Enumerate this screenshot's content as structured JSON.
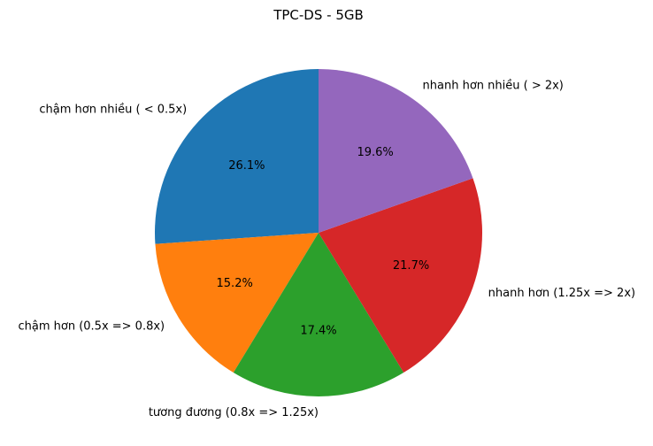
{
  "chart_data": {
    "type": "pie",
    "title": "TPC-DS - 5GB",
    "start_angle_deg": 90,
    "direction": "counterclockwise",
    "slices": [
      {
        "label": "chậm hơn nhiều ( < 0.5x)",
        "value": 26.1,
        "pct_label": "26.1%",
        "color": "#1f77b4"
      },
      {
        "label": "chậm hơn (0.5x => 0.8x)",
        "value": 15.2,
        "pct_label": "15.2%",
        "color": "#ff7f0e"
      },
      {
        "label": "tương đương (0.8x => 1.25x)",
        "value": 17.4,
        "pct_label": "17.4%",
        "color": "#2ca02c"
      },
      {
        "label": "nhanh hơn (1.25x => 2x)",
        "value": 21.7,
        "pct_label": "21.7%",
        "color": "#d62728"
      },
      {
        "label": "nhanh hơn nhiều ( > 2x)",
        "value": 19.6,
        "pct_label": "19.6%",
        "color": "#9467bd"
      }
    ]
  }
}
